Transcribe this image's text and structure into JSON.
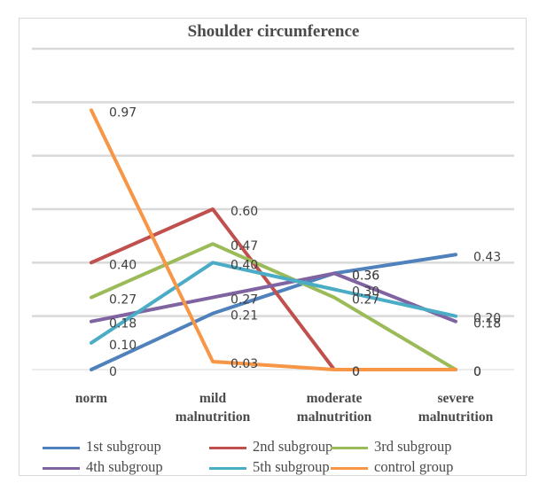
{
  "chart_data": {
    "type": "line",
    "title": "Shoulder circumference",
    "xlabel": "",
    "ylabel": "",
    "categories": [
      "norm",
      "mild malnutrition",
      "moderate malnutrition",
      "severe malnutrition"
    ],
    "category_lines": [
      [
        "norm"
      ],
      [
        "mild",
        "malnutrition"
      ],
      [
        "moderate",
        "malnutrition"
      ],
      [
        "severe",
        "malnutrition"
      ]
    ],
    "ylim": [
      0,
      1.2
    ],
    "y_gridlines": [
      0,
      0.2,
      0.4,
      0.6,
      0.8,
      1.0,
      1.2
    ],
    "y_tick_labels_visible": false,
    "grid": true,
    "legend_position": "bottom",
    "series": [
      {
        "name": "1st subgroup",
        "color": "#4F81BD",
        "values": [
          0,
          0.21,
          0.36,
          0.43
        ],
        "labels": [
          "0",
          "0.21",
          "0.36",
          "0.43"
        ]
      },
      {
        "name": "2nd subgroup",
        "color": "#C0504D",
        "values": [
          0.4,
          0.6,
          0,
          0
        ],
        "labels": [
          "0.40",
          "0.60",
          "0",
          "0"
        ]
      },
      {
        "name": "3rd subgroup",
        "color": "#9BBB59",
        "values": [
          0.27,
          0.47,
          0.27,
          0
        ],
        "labels": [
          "0.27",
          "0.47",
          "0.27",
          "0"
        ]
      },
      {
        "name": "4th subgroup",
        "color": "#8064A2",
        "values": [
          0.18,
          0.27,
          0.36,
          0.18
        ],
        "labels": [
          "0.18",
          "0.27",
          "0.36",
          "0.18"
        ]
      },
      {
        "name": "5th subgroup",
        "color": "#4BACC6",
        "values": [
          0.1,
          0.4,
          0.3,
          0.2
        ],
        "labels": [
          "0.10",
          "0.40",
          "0.30",
          "0.20"
        ]
      },
      {
        "name": "control group",
        "color": "#F79646",
        "values": [
          0.97,
          0.03,
          0,
          0
        ],
        "labels": [
          "0.97",
          "0.03",
          "0",
          "0"
        ]
      }
    ]
  }
}
